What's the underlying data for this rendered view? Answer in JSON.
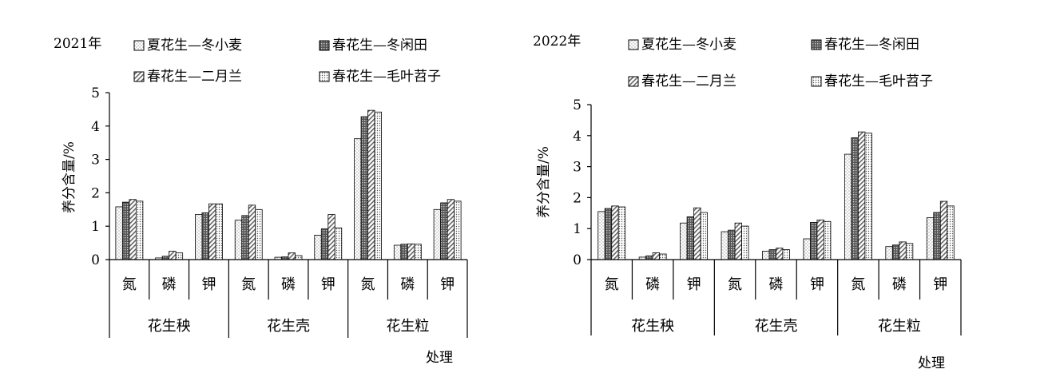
{
  "figure": {
    "xlabel": "处理",
    "ylabel": "养分含量/%"
  },
  "legend": {
    "labels": [
      "夏花生—冬小麦",
      "春花生—冬闲田",
      "春花生—二月兰",
      "春花生—毛叶苕子"
    ],
    "patterns": [
      "dotted-white",
      "dense-grid",
      "diagonal-hatch",
      "light-dots"
    ]
  },
  "chart_data": [
    {
      "type": "bar",
      "title": "2021年",
      "xlabel": "处理",
      "ylabel": "养分含量/%",
      "ylim": [
        0,
        5
      ],
      "yticks": [
        0,
        1,
        2,
        3,
        4,
        5
      ],
      "groups": [
        "花生秧",
        "花生壳",
        "花生粒"
      ],
      "categories": [
        "氮",
        "磷",
        "钾",
        "氮",
        "磷",
        "钾",
        "氮",
        "磷",
        "钾"
      ],
      "grid": false,
      "legend_position": "top",
      "series": [
        {
          "name": "夏花生—冬小麦",
          "values": [
            1.58,
            0.05,
            1.35,
            1.18,
            0.07,
            0.73,
            3.62,
            0.43,
            1.5
          ]
        },
        {
          "name": "春花生—冬闲田",
          "values": [
            1.72,
            0.1,
            1.4,
            1.32,
            0.08,
            0.92,
            4.28,
            0.46,
            1.7
          ]
        },
        {
          "name": "春花生—二月兰",
          "values": [
            1.8,
            0.25,
            1.67,
            1.63,
            0.2,
            1.35,
            4.47,
            0.47,
            1.8
          ]
        },
        {
          "name": "春花生—毛叶苕子",
          "values": [
            1.75,
            0.2,
            1.67,
            1.5,
            0.12,
            0.95,
            4.42,
            0.46,
            1.75
          ]
        }
      ]
    },
    {
      "type": "bar",
      "title": "2022年",
      "xlabel": "处理",
      "ylabel": "养分含量/%",
      "ylim": [
        0,
        5
      ],
      "yticks": [
        0,
        1,
        2,
        3,
        4,
        5
      ],
      "groups": [
        "花生秧",
        "花生壳",
        "花生粒"
      ],
      "categories": [
        "氮",
        "磷",
        "钾",
        "氮",
        "磷",
        "钾",
        "氮",
        "磷",
        "钾"
      ],
      "grid": false,
      "legend_position": "top",
      "series": [
        {
          "name": "夏花生—冬小麦",
          "values": [
            1.55,
            0.08,
            1.18,
            0.9,
            0.27,
            0.67,
            3.4,
            0.42,
            1.35
          ]
        },
        {
          "name": "春花生—冬闲田",
          "values": [
            1.65,
            0.12,
            1.38,
            0.95,
            0.32,
            1.2,
            3.93,
            0.47,
            1.52
          ]
        },
        {
          "name": "春花生—二月兰",
          "values": [
            1.73,
            0.22,
            1.67,
            1.18,
            0.37,
            1.28,
            4.12,
            0.57,
            1.88
          ]
        },
        {
          "name": "春花生—毛叶苕子",
          "values": [
            1.7,
            0.18,
            1.52,
            1.08,
            0.32,
            1.23,
            4.08,
            0.52,
            1.73
          ]
        }
      ]
    }
  ]
}
